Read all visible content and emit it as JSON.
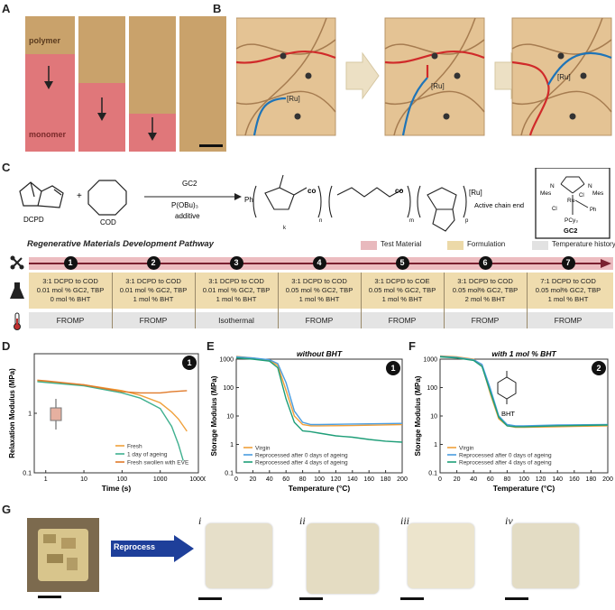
{
  "panels": {
    "a": "A",
    "b": "B",
    "c": "C",
    "d": "D",
    "e": "E",
    "f": "F",
    "g": "G"
  },
  "panel_a": {
    "top_label": "polymer",
    "bottom_label": "monomer"
  },
  "panel_b": {
    "catalyst": "[Ru]"
  },
  "panel_c": {
    "dcpd": "DCPD",
    "cod": "COD",
    "plus": "+",
    "arrow_top": "GC2",
    "arrow_mid": "P(OBu)₃",
    "arrow_bot": "additive",
    "ph": "Ph",
    "co1": "co",
    "co2": "co",
    "sub_n": "n",
    "sub_m": "m",
    "sub_p": "p",
    "sub_k": "k",
    "ru": "[Ru]",
    "active_chain_end": "Active chain end",
    "gc2_label": "GC2",
    "gc2_struct": {
      "mes_l": "Mes",
      "mes_r": "Mes",
      "n_l": "N",
      "n_r": "N",
      "ru": "Ru",
      "cl1": "Cl",
      "cl2": "Cl",
      "ph": "Ph",
      "pcy": "PCy₃"
    }
  },
  "pathway": {
    "title": "Regenerative Materials Development Pathway",
    "legend": [
      "Test Material",
      "Formulation",
      "Temperature history"
    ],
    "legend_colors": [
      "#e8b9bd",
      "#ecd9a8",
      "#e2e2e2"
    ],
    "steps": [
      {
        "num": "1",
        "l1": "3:1 DCPD to COD",
        "l2": "0.01 mol % GC2, TBP",
        "l3": "0 mol % BHT",
        "temp": "FROMP"
      },
      {
        "num": "2",
        "l1": "3:1 DCPD to COD",
        "l2": "0.01 mol % GC2, TBP",
        "l3": "1 mol % BHT",
        "temp": "FROMP"
      },
      {
        "num": "3",
        "l1": "3:1 DCPD to COD",
        "l2": "0.01 mol % GC2, TBP",
        "l3": "1 mol % BHT",
        "temp": "Isothermal"
      },
      {
        "num": "4",
        "l1": "3:1 DCPD to COD",
        "l2": "0.05 mol % GC2, TBP",
        "l3": "1 mol % BHT",
        "temp": "FROMP"
      },
      {
        "num": "5",
        "l1": "3:1 DCPD to COE",
        "l2": "0.05 mol % GC2, TBP",
        "l3": "1 mol % BHT",
        "temp": "FROMP"
      },
      {
        "num": "6",
        "l1": "3:1 DCPD to COD",
        "l2": "0.05 mol% GC2, TBP",
        "l3": "2 mol % BHT",
        "temp": "FROMP"
      },
      {
        "num": "7",
        "l1": "7:1 DCPD to COD",
        "l2": "0.05 mol% GC2, TBP",
        "l3": "1 mol % BHT",
        "temp": "FROMP"
      }
    ]
  },
  "chart_data": [
    {
      "type": "line",
      "panel": "D",
      "badge": "1",
      "xlabel": "Time (s)",
      "ylabel": "Relaxation Modulus (MPa)",
      "xscale": "log",
      "yscale": "log",
      "xlim": [
        0.5,
        10000
      ],
      "ylim": [
        0.1,
        10
      ],
      "xticks": [
        "1",
        "10",
        "100",
        "1000",
        "10000"
      ],
      "yticks": [
        "0.1",
        "1"
      ],
      "series": [
        {
          "name": "Fresh",
          "color": "#f0a03a",
          "x": [
            0.6,
            1,
            10,
            100,
            300,
            1000,
            2000,
            3000,
            5000
          ],
          "y": [
            3.5,
            3.4,
            3.0,
            2.4,
            2.0,
            1.5,
            1.05,
            0.8,
            0.5
          ]
        },
        {
          "name": "1 day of ageing",
          "color": "#3fb08f",
          "x": [
            0.6,
            1,
            10,
            100,
            300,
            1000,
            2000,
            3000,
            4000
          ],
          "y": [
            3.4,
            3.3,
            2.9,
            2.2,
            1.8,
            1.2,
            0.6,
            0.3,
            0.16
          ]
        },
        {
          "name": "Fresh swollen with EVE",
          "color": "#e07a2a",
          "x": [
            0.6,
            1,
            10,
            100,
            300,
            1000,
            2000,
            5000
          ],
          "y": [
            3.6,
            3.5,
            3.0,
            2.3,
            2.2,
            2.2,
            2.3,
            2.4
          ]
        }
      ]
    },
    {
      "type": "line",
      "panel": "E",
      "badge": "1",
      "title": "without BHT",
      "xlabel": "Temperature (°C)",
      "ylabel": "Storage Modulus (MPa)",
      "yscale": "log",
      "xlim": [
        0,
        200
      ],
      "ylim": [
        0.1,
        1000
      ],
      "xticks": [
        "0",
        "20",
        "40",
        "60",
        "80",
        "100",
        "120",
        "140",
        "160",
        "180",
        "200"
      ],
      "yticks": [
        "0.1",
        "1",
        "10",
        "100",
        "1000"
      ],
      "series": [
        {
          "name": "Virgin",
          "color": "#f0a03a",
          "x": [
            0,
            20,
            40,
            50,
            60,
            70,
            80,
            90,
            100,
            140,
            200
          ],
          "y": [
            1250,
            1100,
            900,
            600,
            80,
            10,
            5,
            4.5,
            4.5,
            4.6,
            5
          ]
        },
        {
          "name": "Reprocessed after 0 days of ageing",
          "color": "#4a9de0",
          "x": [
            0,
            20,
            40,
            50,
            60,
            70,
            80,
            90,
            100,
            140,
            200
          ],
          "y": [
            1200,
            1100,
            950,
            700,
            150,
            15,
            6,
            5,
            5,
            5.2,
            5.5
          ]
        },
        {
          "name": "Reprocessed after 4 days of ageing",
          "color": "#1e9e78",
          "x": [
            0,
            20,
            40,
            50,
            60,
            70,
            80,
            90,
            100,
            120,
            140,
            160,
            180,
            200
          ],
          "y": [
            1100,
            1000,
            850,
            500,
            40,
            6,
            3,
            2.8,
            2.5,
            2.0,
            1.8,
            1.5,
            1.3,
            1.2
          ]
        }
      ]
    },
    {
      "type": "line",
      "panel": "F",
      "badge": "2",
      "title": "with 1 mol % BHT",
      "xlabel": "Temperature (°C)",
      "ylabel": "Storage Modulus (MPa)",
      "yscale": "log",
      "xlim": [
        0,
        200
      ],
      "ylim": [
        0.1,
        1000
      ],
      "xticks": [
        "0",
        "20",
        "40",
        "60",
        "80",
        "100",
        "120",
        "140",
        "160",
        "180",
        "200"
      ],
      "yticks": [
        "0.1",
        "1",
        "10",
        "100",
        "1000"
      ],
      "annotation": "BHT",
      "series": [
        {
          "name": "Virgin",
          "color": "#f0a03a",
          "x": [
            0,
            20,
            40,
            50,
            60,
            70,
            80,
            90,
            100,
            140,
            200
          ],
          "y": [
            1300,
            1200,
            1000,
            600,
            60,
            8,
            4.5,
            4,
            4,
            4.2,
            4.5
          ]
        },
        {
          "name": "Reprocessed after 0 days of ageing",
          "color": "#4a9de0",
          "x": [
            0,
            20,
            40,
            50,
            60,
            70,
            80,
            90,
            100,
            140,
            200
          ],
          "y": [
            1250,
            1150,
            950,
            650,
            90,
            10,
            5,
            4.5,
            4.5,
            4.8,
            5
          ]
        },
        {
          "name": "Reprocessed after 4 days of ageing",
          "color": "#1e9e78",
          "x": [
            0,
            20,
            40,
            50,
            60,
            70,
            80,
            90,
            100,
            140,
            200
          ],
          "y": [
            1200,
            1100,
            900,
            550,
            70,
            9,
            4.5,
            4.2,
            4.2,
            4.5,
            4.8
          ]
        }
      ]
    }
  ],
  "panel_g": {
    "arrow": "Reprocess",
    "samples": [
      "i",
      "ii",
      "iii",
      "iv"
    ]
  }
}
